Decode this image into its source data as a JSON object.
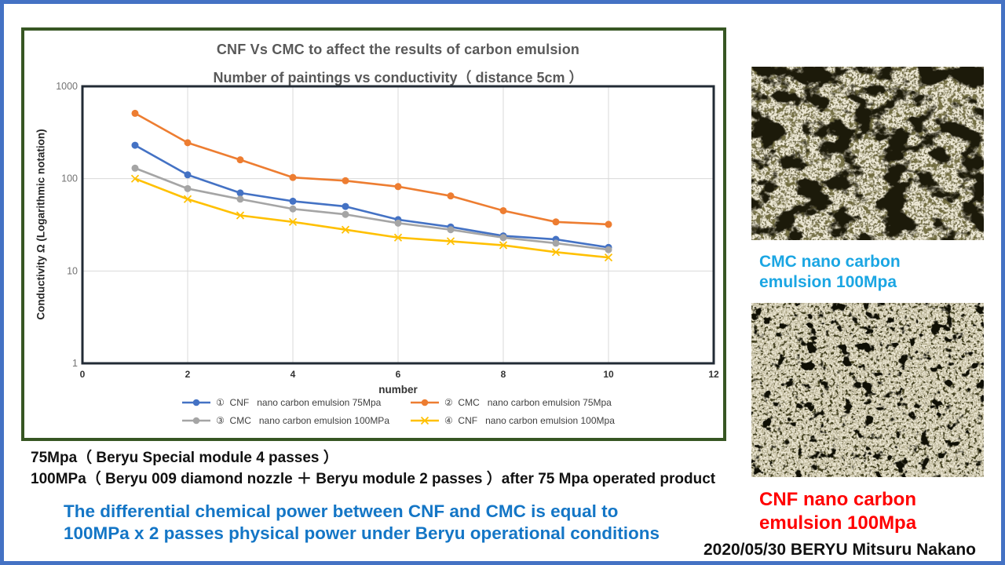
{
  "theme": {
    "outer_border": "#4472C4",
    "panel_border": "#375623",
    "title_color": "#595959",
    "statement_color": "#1476C6",
    "cmc_caption_color": "#1BA6E3",
    "cnf_caption_color": "#FF0000",
    "grid_color": "#D9D9D9",
    "frame_color": "#222B35",
    "tick_color": "#737373",
    "xtick_color": "#333333"
  },
  "chart_data": {
    "type": "line",
    "title": "CNF Vs CMC to affect the results of carbon emulsion",
    "subtitle": "Number of paintings vs conductivity（ distance 5cm ）",
    "xlabel": "number",
    "ylabel": "Conductivity Ω (Logarithmic notation)",
    "y_scale": "log",
    "xlim": [
      0,
      12
    ],
    "ylim": [
      1,
      1000
    ],
    "x_ticks": [
      0,
      2,
      4,
      6,
      8,
      10,
      12
    ],
    "y_ticks": [
      1,
      10,
      100,
      1000
    ],
    "grid": true,
    "legend_position": "bottom",
    "x": [
      1,
      2,
      3,
      4,
      5,
      6,
      7,
      8,
      9,
      10
    ],
    "series": [
      {
        "name": "①  CNF   nano carbon emulsion 75Mpa",
        "color": "#4472C4",
        "marker": "circle",
        "values": [
          230,
          110,
          70,
          57,
          50,
          36,
          30,
          24,
          22,
          18
        ]
      },
      {
        "name": "②  CMC   nano carbon emulsion 75Mpa",
        "color": "#ED7D31",
        "marker": "circle",
        "values": [
          510,
          245,
          160,
          103,
          95,
          82,
          65,
          45,
          34,
          32
        ]
      },
      {
        "name": "③  CMC   nano carbon emulsion 100MPa",
        "color": "#A5A5A5",
        "marker": "circle",
        "values": [
          130,
          78,
          60,
          47,
          41,
          33,
          28,
          23,
          20,
          17
        ]
      },
      {
        "name": "④  CNF   nano carbon emulsion 100Mpa",
        "color": "#FFC000",
        "marker": "x",
        "values": [
          100,
          60,
          40,
          34,
          28,
          23,
          21,
          19,
          16,
          14
        ]
      }
    ]
  },
  "notes": {
    "line1": "75Mpa（ Beryu Special module 4 passes ）",
    "line2": "100MPa（ Beryu 009 diamond nozzle ＋ Beryu module 2 passes ）after 75 Mpa operated product"
  },
  "statement": {
    "line1": "The differential chemical power between CNF and CMC is equal to",
    "line2": "100MPa x 2 passes physical power under Beryu operational conditions"
  },
  "photos": {
    "cmc": {
      "caption_line1": "CMC nano carbon",
      "caption_line2": "emulsion  100Mpa"
    },
    "cnf": {
      "caption_line1": "CNF nano carbon",
      "caption_line2": "emulsion 100Mpa"
    }
  },
  "footer": {
    "credit": "2020/05/30 BERYU Mitsuru Nakano"
  }
}
